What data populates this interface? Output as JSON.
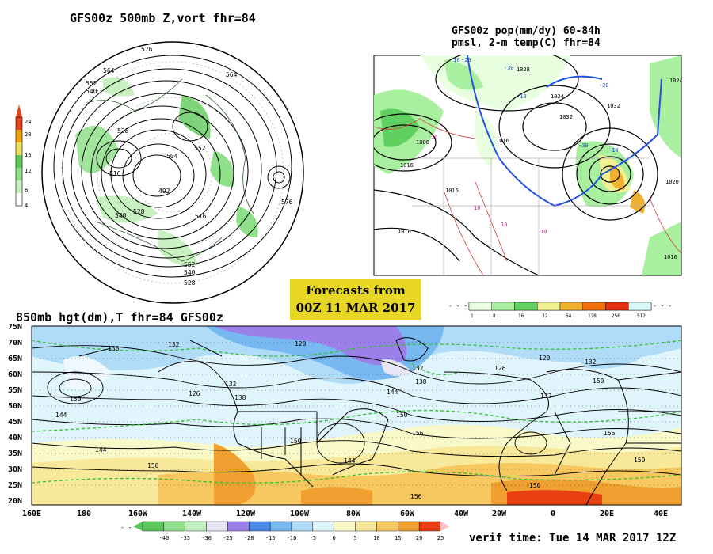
{
  "panel_a": {
    "title": "GFS00z  500mb Z,vort   fhr=84",
    "legend_values": [
      "24",
      "20",
      "16",
      "12",
      "8",
      "4"
    ],
    "legend_colors": [
      "#e8421e",
      "#f0a000",
      "#f0e060",
      "#5fc85a",
      "#8fe08a",
      "#c8f0c0"
    ],
    "contour_labels": [
      "576",
      "564",
      "552",
      "540",
      "528",
      "516",
      "504",
      "492",
      "564",
      "552",
      "540",
      "528",
      "516",
      "576",
      "552",
      "540",
      "528"
    ]
  },
  "panel_b": {
    "title_line1": "GFS00z pop(mm/dy) 60-84h",
    "title_line2": "pmsl, 2-m temp(C)  fhr=84",
    "legend_values": [
      "1",
      "8",
      "16",
      "32",
      "64",
      "128",
      "256",
      "512"
    ],
    "legend_colors": [
      "#e8ffe0",
      "#a8f0a0",
      "#60d060",
      "#f0f090",
      "#f0b030",
      "#f07010",
      "#e03010",
      "#d8f8f8"
    ],
    "isobar_labels": [
      "1000",
      "1016",
      "1016",
      "1024",
      "1032",
      "1016",
      "1016",
      "1028",
      "1032",
      "1024",
      "1020",
      "1016"
    ],
    "temp_labels": [
      "-10",
      "-20",
      "-30",
      "-10",
      "-20",
      "-30",
      "-10",
      "10",
      "10",
      "10",
      "-10"
    ]
  },
  "forecast_box": {
    "line1": "Forecasts from",
    "line2": "00Z 11 MAR 2017"
  },
  "panel_c": {
    "title": "850mb hgt(dm),T  fhr=84 GFS00z",
    "lat_labels": [
      "75N",
      "70N",
      "65N",
      "60N",
      "55N",
      "50N",
      "45N",
      "40N",
      "35N",
      "30N",
      "25N",
      "20N"
    ],
    "lon_labels": [
      "160E",
      "180",
      "160W",
      "140W",
      "120W",
      "100W",
      "80W",
      "60W",
      "40W",
      "20W",
      "0",
      "20E",
      "40E"
    ],
    "contour_labels": [
      "138",
      "132",
      "120",
      "132",
      "126",
      "150",
      "144",
      "144",
      "132",
      "138",
      "144",
      "150",
      "138",
      "156",
      "150",
      "150",
      "144",
      "126",
      "120",
      "132",
      "150",
      "132",
      "156",
      "150",
      "150",
      "156"
    ]
  },
  "temp_legend": {
    "values": [
      "-40",
      "-35",
      "-30",
      "-25",
      "-20",
      "-15",
      "-10",
      "-5",
      "0",
      "5",
      "10",
      "15",
      "20",
      "25"
    ],
    "colors": [
      "#5ac85a",
      "#8fe08a",
      "#c0f0c0",
      "#e6e6f5",
      "#9a80e8",
      "#4a8ae8",
      "#78b8f0",
      "#b0dcf8",
      "#e0f4fc",
      "#f8f8c8",
      "#f8e89a",
      "#f8c860",
      "#f0a030",
      "#e84010"
    ]
  },
  "verif": "verif time: Tue 14 MAR 2017 12Z"
}
